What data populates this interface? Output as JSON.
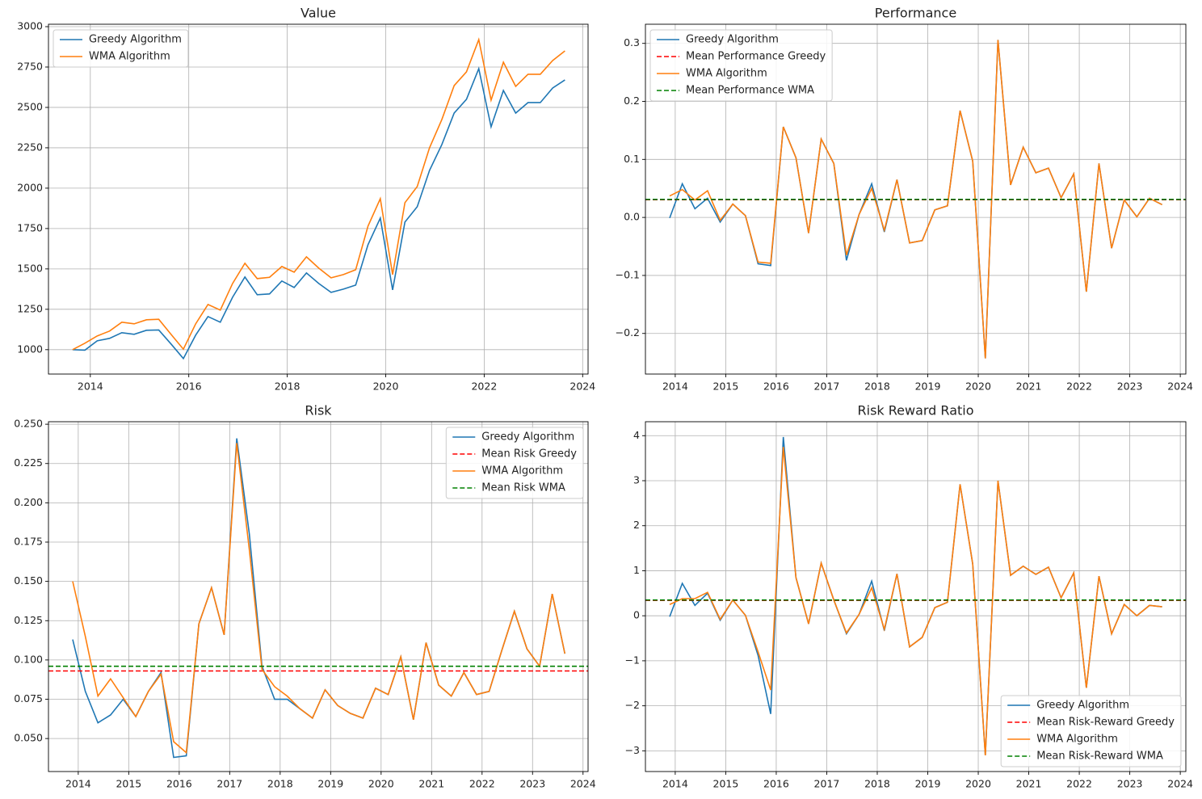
{
  "chart_data": [
    {
      "type": "line",
      "title": "Value",
      "grid": true,
      "legend": "upper left",
      "x": [
        2013.64,
        2013.89,
        2014.14,
        2014.39,
        2014.64,
        2014.89,
        2015.14,
        2015.39,
        2015.64,
        2015.89,
        2016.14,
        2016.39,
        2016.64,
        2016.89,
        2017.14,
        2017.39,
        2017.64,
        2017.89,
        2018.14,
        2018.39,
        2018.64,
        2018.89,
        2019.14,
        2019.39,
        2019.64,
        2019.89,
        2020.14,
        2020.39,
        2020.64,
        2020.89,
        2021.14,
        2021.39,
        2021.64,
        2021.89,
        2022.14,
        2022.39,
        2022.64,
        2022.89,
        2023.14,
        2023.39,
        2023.64
      ],
      "xlim": [
        2013.15,
        2024.11
      ],
      "xticks": [
        2014,
        2016,
        2018,
        2020,
        2022,
        2024
      ],
      "ylim": [
        849,
        3015
      ],
      "yticks": [
        1000,
        1250,
        1500,
        1750,
        2000,
        2250,
        2500,
        2750,
        3000
      ],
      "series": [
        {
          "name": "Greedy Algorithm",
          "color": "#1f77b4",
          "values": [
            1000,
            997,
            1055,
            1070,
            1105,
            1095,
            1120,
            1122,
            1035,
            945,
            1090,
            1205,
            1170,
            1325,
            1450,
            1340,
            1345,
            1425,
            1385,
            1475,
            1410,
            1355,
            1375,
            1400,
            1650,
            1815,
            1370,
            1790,
            1885,
            2110,
            2270,
            2465,
            2550,
            2740,
            2380,
            2605,
            2465,
            2530,
            2530,
            2620,
            2670
          ]
        },
        {
          "name": "WMA Algorithm",
          "color": "#ff7f0e",
          "values": [
            1000,
            1040,
            1085,
            1115,
            1170,
            1160,
            1185,
            1188,
            1095,
            1003,
            1160,
            1280,
            1245,
            1410,
            1535,
            1440,
            1448,
            1515,
            1480,
            1575,
            1505,
            1445,
            1465,
            1495,
            1765,
            1935,
            1465,
            1910,
            2010,
            2250,
            2425,
            2635,
            2720,
            2920,
            2545,
            2780,
            2630,
            2705,
            2705,
            2790,
            2850
          ]
        }
      ]
    },
    {
      "type": "line",
      "title": "Performance",
      "grid": true,
      "legend": "upper left",
      "x": [
        2013.89,
        2014.14,
        2014.39,
        2014.64,
        2014.89,
        2015.14,
        2015.39,
        2015.64,
        2015.89,
        2016.14,
        2016.39,
        2016.64,
        2016.89,
        2017.14,
        2017.39,
        2017.64,
        2017.89,
        2018.14,
        2018.39,
        2018.64,
        2018.89,
        2019.14,
        2019.39,
        2019.64,
        2019.89,
        2020.14,
        2020.39,
        2020.64,
        2020.89,
        2021.14,
        2021.39,
        2021.64,
        2021.89,
        2022.14,
        2022.39,
        2022.64,
        2022.89,
        2023.14,
        2023.39,
        2023.64
      ],
      "xlim": [
        2013.41,
        2024.11
      ],
      "xticks": [
        2014,
        2015,
        2016,
        2017,
        2018,
        2019,
        2020,
        2021,
        2022,
        2023,
        2024
      ],
      "ylim": [
        -0.27,
        0.333
      ],
      "yticks": [
        {
          "value": -0.2,
          "label": "−0.2"
        },
        {
          "value": -0.1,
          "label": "−0.1"
        },
        {
          "value": 0,
          "label": "0.0"
        },
        0.1,
        0.2,
        0.3
      ],
      "series": [
        {
          "name": "Greedy Algorithm",
          "color": "#1f77b4",
          "values": [
            -0.001,
            0.058,
            0.015,
            0.033,
            -0.008,
            0.023,
            0.003,
            -0.08,
            -0.083,
            0.156,
            0.103,
            -0.027,
            0.135,
            0.093,
            -0.074,
            0.005,
            0.058,
            -0.025,
            0.065,
            -0.044,
            -0.04,
            0.013,
            0.02,
            0.184,
            0.097,
            -0.243,
            0.306,
            0.056,
            0.121,
            0.077,
            0.085,
            0.034,
            0.075,
            -0.128,
            0.093,
            -0.053,
            0.03,
            0.001,
            0.033,
            0.022
          ]
        },
        {
          "name": "Mean Performance Greedy",
          "color": "#ff0000",
          "dashed": true,
          "value": 0.0305
        },
        {
          "name": "WMA Algorithm",
          "color": "#ff7f0e",
          "values": [
            0.037,
            0.048,
            0.03,
            0.046,
            -0.005,
            0.023,
            0.003,
            -0.077,
            -0.079,
            0.156,
            0.103,
            -0.027,
            0.135,
            0.093,
            -0.065,
            0.005,
            0.05,
            -0.022,
            0.065,
            -0.044,
            -0.04,
            0.013,
            0.02,
            0.184,
            0.097,
            -0.243,
            0.306,
            0.056,
            0.121,
            0.077,
            0.085,
            0.034,
            0.075,
            -0.128,
            0.093,
            -0.053,
            0.03,
            0.001,
            0.033,
            0.022
          ]
        },
        {
          "name": "Mean Performance WMA",
          "color": "#008000",
          "dashed": true,
          "value": 0.031
        }
      ]
    },
    {
      "type": "line",
      "title": "Risk",
      "grid": true,
      "legend": "upper right",
      "x": [
        2013.89,
        2014.14,
        2014.39,
        2014.64,
        2014.89,
        2015.14,
        2015.39,
        2015.64,
        2015.89,
        2016.14,
        2016.39,
        2016.64,
        2016.89,
        2017.14,
        2017.39,
        2017.64,
        2017.89,
        2018.14,
        2018.39,
        2018.64,
        2018.89,
        2019.14,
        2019.39,
        2019.64,
        2019.89,
        2020.14,
        2020.39,
        2020.64,
        2020.89,
        2021.14,
        2021.39,
        2021.64,
        2021.89,
        2022.14,
        2022.39,
        2022.64,
        2022.89,
        2023.14,
        2023.39,
        2023.64
      ],
      "xlim": [
        2013.41,
        2024.1
      ],
      "xticks": [
        2014,
        2015,
        2016,
        2017,
        2018,
        2019,
        2020,
        2021,
        2022,
        2023,
        2024
      ],
      "ylim": [
        0.029,
        0.2516
      ],
      "yticks": [
        {
          "value": 0.05,
          "label": "0.050"
        },
        {
          "value": 0.075,
          "label": "0.075"
        },
        {
          "value": 0.1,
          "label": "0.100"
        },
        {
          "value": 0.125,
          "label": "0.125"
        },
        {
          "value": 0.15,
          "label": "0.150"
        },
        {
          "value": 0.175,
          "label": "0.175"
        },
        {
          "value": 0.2,
          "label": "0.200"
        },
        {
          "value": 0.225,
          "label": "0.225"
        },
        {
          "value": 0.25,
          "label": "0.250"
        }
      ],
      "series": [
        {
          "name": "Greedy Algorithm",
          "color": "#1f77b4",
          "values": [
            0.113,
            0.08,
            0.06,
            0.065,
            0.075,
            0.064,
            0.08,
            0.092,
            0.038,
            0.039,
            0.123,
            0.146,
            0.116,
            0.241,
            0.18,
            0.096,
            0.075,
            0.075,
            0.069,
            0.063,
            0.081,
            0.071,
            0.066,
            0.063,
            0.082,
            0.078,
            0.102,
            0.062,
            0.111,
            0.084,
            0.077,
            0.092,
            0.078,
            0.08,
            0.106,
            0.131,
            0.107,
            0.096,
            0.142,
            0.104
          ]
        },
        {
          "name": "Mean Risk Greedy",
          "color": "#ff0000",
          "dashed": true,
          "value": 0.093
        },
        {
          "name": "WMA Algorithm",
          "color": "#ff7f0e",
          "values": [
            0.15,
            0.115,
            0.077,
            0.088,
            0.076,
            0.064,
            0.08,
            0.091,
            0.048,
            0.041,
            0.123,
            0.146,
            0.116,
            0.238,
            0.17,
            0.094,
            0.083,
            0.077,
            0.069,
            0.063,
            0.081,
            0.071,
            0.066,
            0.063,
            0.082,
            0.078,
            0.102,
            0.062,
            0.111,
            0.084,
            0.077,
            0.092,
            0.078,
            0.08,
            0.106,
            0.131,
            0.107,
            0.096,
            0.142,
            0.104
          ]
        },
        {
          "name": "Mean Risk WMA",
          "color": "#008000",
          "dashed": true,
          "value": 0.096
        }
      ]
    },
    {
      "type": "line",
      "title": "Risk Reward Ratio",
      "grid": true,
      "legend": "lower right",
      "x": [
        2013.89,
        2014.14,
        2014.39,
        2014.64,
        2014.89,
        2015.14,
        2015.39,
        2015.64,
        2015.89,
        2016.14,
        2016.39,
        2016.64,
        2016.89,
        2017.14,
        2017.39,
        2017.64,
        2017.89,
        2018.14,
        2018.39,
        2018.64,
        2018.89,
        2019.14,
        2019.39,
        2019.64,
        2019.89,
        2020.14,
        2020.39,
        2020.64,
        2020.89,
        2021.14,
        2021.39,
        2021.64,
        2021.89,
        2022.14,
        2022.39,
        2022.64,
        2022.89,
        2023.14,
        2023.39,
        2023.64
      ],
      "xlim": [
        2013.41,
        2024.11
      ],
      "xticks": [
        2014,
        2015,
        2016,
        2017,
        2018,
        2019,
        2020,
        2021,
        2022,
        2023,
        2024
      ],
      "ylim": [
        -3.46,
        4.31
      ],
      "yticks": [
        {
          "value": -3,
          "label": "−3"
        },
        {
          "value": -2,
          "label": "−2"
        },
        {
          "value": -1,
          "label": "−1"
        },
        0,
        1,
        2,
        3,
        4
      ],
      "series": [
        {
          "name": "Greedy Algorithm",
          "color": "#1f77b4",
          "values": [
            -0.02,
            0.72,
            0.23,
            0.5,
            -0.1,
            0.35,
            0.01,
            -0.88,
            -2.18,
            3.97,
            0.85,
            -0.18,
            1.17,
            0.35,
            -0.4,
            0.03,
            0.77,
            -0.33,
            0.93,
            -0.69,
            -0.48,
            0.18,
            0.3,
            2.92,
            1.15,
            -3.1,
            3.0,
            0.9,
            1.1,
            0.92,
            1.08,
            0.4,
            0.95,
            -1.6,
            0.88,
            -0.4,
            0.25,
            0.0,
            0.23,
            0.2
          ]
        },
        {
          "name": "Mean Risk-Reward Greedy",
          "color": "#ff0000",
          "dashed": true,
          "value": 0.34
        },
        {
          "name": "WMA Algorithm",
          "color": "#ff7f0e",
          "values": [
            0.25,
            0.38,
            0.38,
            0.52,
            -0.08,
            0.35,
            0.01,
            -0.8,
            -1.65,
            3.75,
            0.85,
            -0.18,
            1.17,
            0.35,
            -0.38,
            0.03,
            0.62,
            -0.3,
            0.93,
            -0.69,
            -0.48,
            0.18,
            0.3,
            2.92,
            1.15,
            -3.1,
            3.0,
            0.9,
            1.1,
            0.92,
            1.08,
            0.4,
            0.95,
            -1.6,
            0.88,
            -0.4,
            0.25,
            0.0,
            0.23,
            0.2
          ]
        },
        {
          "name": "Mean Risk-Reward WMA",
          "color": "#008000",
          "dashed": true,
          "value": 0.35
        }
      ]
    }
  ]
}
